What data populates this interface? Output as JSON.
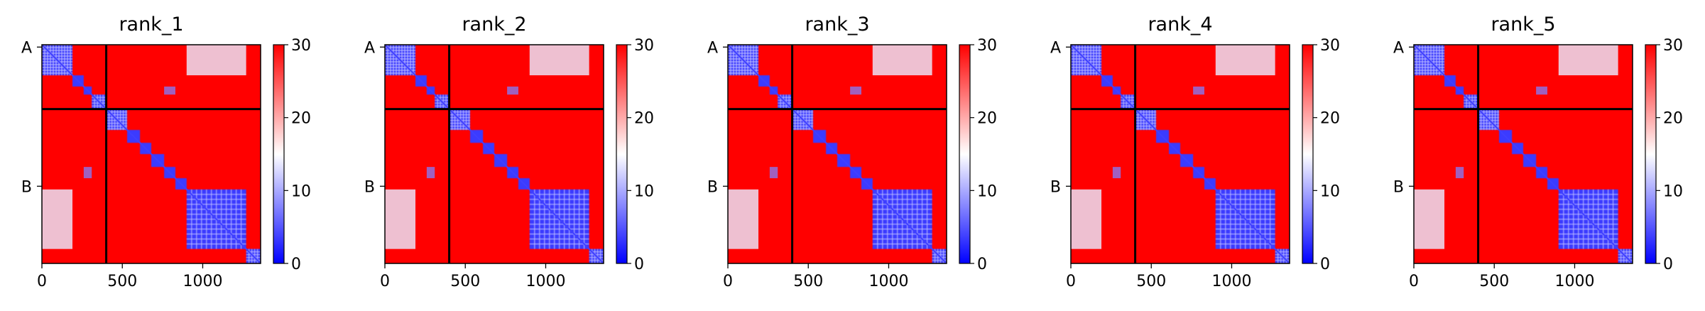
{
  "colors": {
    "low": "#0000ff",
    "mid": "#ffffff",
    "high": "#ff0000",
    "separator": "#000000"
  },
  "chart_data": [
    {
      "type": "heatmap",
      "title": "rank_1",
      "xticks": [
        0,
        500,
        1000
      ],
      "xlim": [
        0,
        1360
      ],
      "ylim": [
        1360,
        0
      ],
      "chain_boundary": 400,
      "yticks": [
        {
          "label": "A",
          "pos": 200
        },
        {
          "label": "B",
          "pos": 880
        }
      ],
      "colorbar": {
        "min": 0,
        "max": 30,
        "ticks": [
          0,
          10,
          20,
          30
        ],
        "cmap": "bwr"
      },
      "domains": [
        [
          0,
          190
        ],
        [
          190,
          260
        ],
        [
          260,
          310
        ],
        [
          310,
          400
        ],
        [
          400,
          530
        ],
        [
          530,
          610
        ],
        [
          610,
          680
        ],
        [
          680,
          760
        ],
        [
          760,
          830
        ],
        [
          830,
          900
        ],
        [
          900,
          1270
        ],
        [
          1270,
          1360
        ]
      ]
    },
    {
      "type": "heatmap",
      "title": "rank_2",
      "xticks": [
        0,
        500,
        1000
      ],
      "xlim": [
        0,
        1360
      ],
      "ylim": [
        1360,
        0
      ],
      "chain_boundary": 400,
      "yticks": [
        {
          "label": "A",
          "pos": 200
        },
        {
          "label": "B",
          "pos": 880
        }
      ],
      "colorbar": {
        "min": 0,
        "max": 30,
        "ticks": [
          0,
          10,
          20,
          30
        ],
        "cmap": "bwr"
      },
      "domains": [
        [
          0,
          190
        ],
        [
          190,
          260
        ],
        [
          260,
          310
        ],
        [
          310,
          400
        ],
        [
          400,
          530
        ],
        [
          530,
          610
        ],
        [
          610,
          680
        ],
        [
          680,
          760
        ],
        [
          760,
          830
        ],
        [
          830,
          900
        ],
        [
          900,
          1270
        ],
        [
          1270,
          1360
        ]
      ]
    },
    {
      "type": "heatmap",
      "title": "rank_3",
      "xticks": [
        0,
        500,
        1000
      ],
      "xlim": [
        0,
        1360
      ],
      "ylim": [
        1360,
        0
      ],
      "chain_boundary": 400,
      "yticks": [
        {
          "label": "A",
          "pos": 200
        },
        {
          "label": "B",
          "pos": 880
        }
      ],
      "colorbar": {
        "min": 0,
        "max": 30,
        "ticks": [
          0,
          10,
          20,
          30
        ],
        "cmap": "bwr"
      },
      "domains": [
        [
          0,
          190
        ],
        [
          190,
          260
        ],
        [
          260,
          310
        ],
        [
          310,
          400
        ],
        [
          400,
          530
        ],
        [
          530,
          610
        ],
        [
          610,
          680
        ],
        [
          680,
          760
        ],
        [
          760,
          830
        ],
        [
          830,
          900
        ],
        [
          900,
          1270
        ],
        [
          1270,
          1360
        ]
      ]
    },
    {
      "type": "heatmap",
      "title": "rank_4",
      "xticks": [
        0,
        500,
        1000
      ],
      "xlim": [
        0,
        1360
      ],
      "ylim": [
        1360,
        0
      ],
      "chain_boundary": 400,
      "yticks": [
        {
          "label": "A",
          "pos": 200
        },
        {
          "label": "B",
          "pos": 880
        }
      ],
      "colorbar": {
        "min": 0,
        "max": 30,
        "ticks": [
          0,
          10,
          20,
          30
        ],
        "cmap": "bwr"
      },
      "domains": [
        [
          0,
          190
        ],
        [
          190,
          260
        ],
        [
          260,
          310
        ],
        [
          310,
          400
        ],
        [
          400,
          530
        ],
        [
          530,
          610
        ],
        [
          610,
          680
        ],
        [
          680,
          760
        ],
        [
          760,
          830
        ],
        [
          830,
          900
        ],
        [
          900,
          1270
        ],
        [
          1270,
          1360
        ]
      ]
    },
    {
      "type": "heatmap",
      "title": "rank_5",
      "xticks": [
        0,
        500,
        1000
      ],
      "xlim": [
        0,
        1360
      ],
      "ylim": [
        1360,
        0
      ],
      "chain_boundary": 400,
      "yticks": [
        {
          "label": "A",
          "pos": 200
        },
        {
          "label": "B",
          "pos": 880
        }
      ],
      "colorbar": {
        "min": 0,
        "max": 30,
        "ticks": [
          0,
          10,
          20,
          30
        ],
        "cmap": "bwr"
      },
      "domains": [
        [
          0,
          190
        ],
        [
          190,
          260
        ],
        [
          260,
          310
        ],
        [
          310,
          400
        ],
        [
          400,
          530
        ],
        [
          530,
          610
        ],
        [
          610,
          680
        ],
        [
          680,
          760
        ],
        [
          760,
          830
        ],
        [
          830,
          900
        ],
        [
          900,
          1270
        ],
        [
          1270,
          1360
        ]
      ]
    }
  ]
}
